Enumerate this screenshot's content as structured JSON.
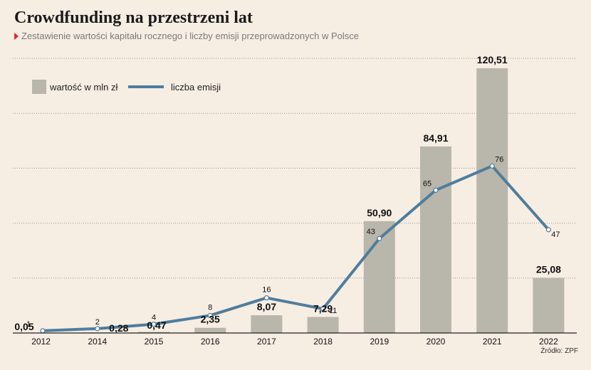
{
  "header": {
    "title": "Crowdfunding na przestrzeni lat",
    "subtitle": "Zestawienie wartości kapitału rocznego i liczby emisji przeprowadzonych w Polsce"
  },
  "source": "Źródło: ZPF",
  "colors": {
    "background": "#f6ede3",
    "bar": "#b9b6ab",
    "line": "#4f7d9c",
    "subtitle_marker": "#e3262b"
  },
  "chart_data": {
    "type": "bar",
    "categories": [
      "2012",
      "2014",
      "2015",
      "2016",
      "2017",
      "2018",
      "2019",
      "2020",
      "2021",
      "2022"
    ],
    "series": [
      {
        "name": "wartość w mln zł",
        "type": "bar",
        "values": [
          0.05,
          0.28,
          0.47,
          2.35,
          8.07,
          7.29,
          50.9,
          84.91,
          120.51,
          25.08
        ],
        "labels": [
          "0,05",
          "0,28",
          "0,47",
          "2,35",
          "8,07",
          "7,29",
          "50,90",
          "84,91",
          "120,51",
          "25,08"
        ]
      },
      {
        "name": "liczba emisji",
        "type": "line",
        "values": [
          1,
          2,
          4,
          8,
          16,
          11,
          43,
          65,
          76,
          47
        ],
        "labels": [
          "1",
          "2",
          "4",
          "8",
          "16",
          "11",
          "43",
          "65",
          "76",
          "47"
        ]
      }
    ],
    "ylim_bar": [
      0,
      125
    ],
    "ylim_line": [
      0,
      125
    ],
    "grid": true,
    "legend": "top-left"
  }
}
